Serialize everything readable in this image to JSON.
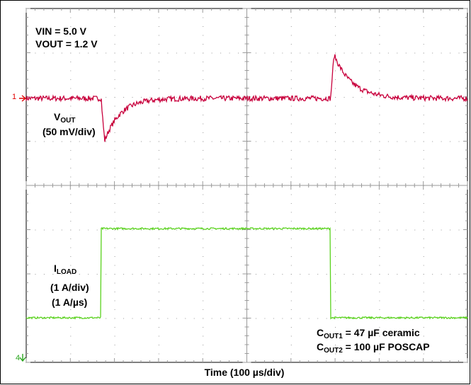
{
  "chart_data": {
    "type": "line",
    "title": "",
    "grid": true,
    "divisions": {
      "x": 10,
      "y": 8
    },
    "x_unit_per_div": "100 µs/div",
    "series": [
      {
        "name": "VOUT",
        "color": "#c8003c",
        "scale": "50 mV/div",
        "x_div": [
          0,
          1.7,
          2.0,
          2.5,
          3.0,
          4.0,
          5.0,
          6.0,
          6.9,
          7.0,
          7.5,
          8.0,
          9.0,
          10.0
        ],
        "y_mv": [
          0,
          0,
          -60,
          -20,
          -5,
          0,
          0,
          0,
          0,
          60,
          25,
          5,
          0,
          0
        ]
      },
      {
        "name": "ILOAD",
        "color": "#5ad21e",
        "scale": "1 A/div",
        "slew": "1 A/µs",
        "x_div": [
          0,
          1.7,
          1.72,
          6.9,
          6.92,
          10.0
        ],
        "y_a": [
          0,
          0,
          2,
          2,
          0,
          0
        ]
      }
    ],
    "xlabel": "Time (100 µs/div)"
  },
  "annotations": {
    "vin": "VIN = 5.0 V",
    "vout": "VOUT = 1.2 V",
    "ch1_label_main": "V",
    "ch1_label_sub": "OUT",
    "ch1_scale": "(50 mV/div)",
    "ch4_label_main": "I",
    "ch4_label_sub": "LOAD",
    "ch4_scale": "(1 A/div)",
    "ch4_slew": "(1 A/µs)",
    "cout1_main": "C",
    "cout1_sub": "OUT1",
    "cout1_rest": " = 47 µF ceramic",
    "cout2_main": "C",
    "cout2_sub": "OUT2",
    "cout2_rest": " = 100 µF POSCAP",
    "time_label": "Time (100 µs/div)",
    "ch1_marker": "1",
    "ch4_marker": "4"
  },
  "colors": {
    "vout_trace": "#c8003c",
    "iload_trace": "#5ad21e",
    "grid": "#9a9a9a",
    "marker1": "#e00000",
    "marker4": "#2aa61e"
  }
}
